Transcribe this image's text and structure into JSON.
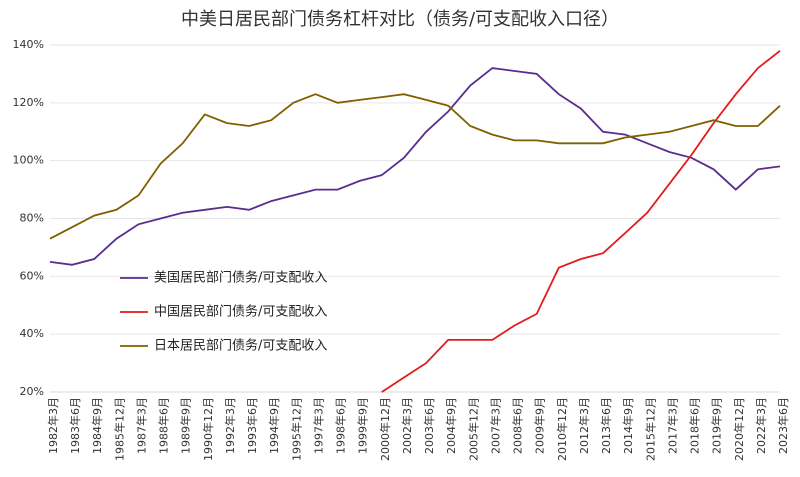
{
  "chart_data": {
    "type": "line",
    "title": "中美日居民部门债务杠杆对比（债务/可支配收入口径）",
    "categories": [
      "1982年3月",
      "1983年6月",
      "1984年9月",
      "1985年12月",
      "1987年3月",
      "1988年6月",
      "1989年9月",
      "1990年12月",
      "1992年3月",
      "1993年6月",
      "1994年9月",
      "1995年12月",
      "1997年3月",
      "1998年6月",
      "1999年9月",
      "2000年12月",
      "2002年3月",
      "2003年6月",
      "2004年9月",
      "2005年12月",
      "2007年3月",
      "2008年6月",
      "2009年9月",
      "2010年12月",
      "2012年3月",
      "2013年6月",
      "2014年9月",
      "2015年12月",
      "2017年3月",
      "2018年6月",
      "2019年9月",
      "2020年12月",
      "2022年3月",
      "2023年6月"
    ],
    "series": [
      {
        "name": "美国居民部门债务/可支配收入",
        "color": "#5b2c8e",
        "values": [
          65,
          64,
          66,
          73,
          78,
          80,
          82,
          83,
          84,
          83,
          86,
          88,
          90,
          90,
          93,
          95,
          101,
          110,
          117,
          126,
          132,
          131,
          130,
          123,
          118,
          110,
          109,
          106,
          103,
          101,
          97,
          90,
          97,
          98
        ]
      },
      {
        "name": "中国居民部门债务/可支配收入",
        "color": "#e31a1c",
        "values": [
          null,
          null,
          null,
          null,
          null,
          null,
          null,
          null,
          null,
          null,
          null,
          null,
          null,
          null,
          null,
          20,
          25,
          30,
          38,
          38,
          38,
          43,
          47,
          63,
          66,
          68,
          75,
          82,
          92,
          102,
          113,
          123,
          132,
          138
        ]
      },
      {
        "name": "日本居民部门债务/可支配收入",
        "color": "#7f6000",
        "values": [
          73,
          77,
          81,
          83,
          88,
          99,
          106,
          116,
          113,
          112,
          114,
          120,
          123,
          120,
          121,
          122,
          123,
          121,
          119,
          112,
          109,
          107,
          107,
          106,
          106,
          106,
          108,
          109,
          110,
          112,
          114,
          112,
          112,
          119
        ]
      }
    ],
    "ylim": [
      20,
      140
    ],
    "yticks": [
      {
        "value": 20,
        "label": "20%"
      },
      {
        "value": 40,
        "label": "40%"
      },
      {
        "value": 60,
        "label": "60%"
      },
      {
        "value": 80,
        "label": "80%"
      },
      {
        "value": 100,
        "label": "100%"
      },
      {
        "value": 120,
        "label": "120%"
      },
      {
        "value": 140,
        "label": "140%"
      }
    ],
    "grid": true,
    "legend": "lower-left"
  }
}
